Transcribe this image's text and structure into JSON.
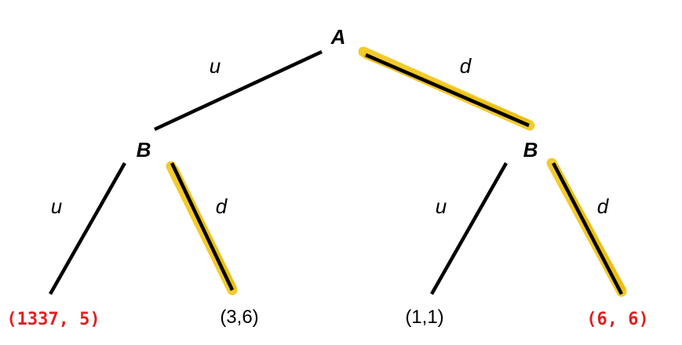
{
  "tree": {
    "root": {
      "label": "A"
    },
    "left_node": {
      "label": "B"
    },
    "right_node": {
      "label": "B"
    },
    "edges": {
      "A_left": {
        "label": "u"
      },
      "A_right": {
        "label": "d",
        "highlighted": true
      },
      "B1_left": {
        "label": "u"
      },
      "B1_right": {
        "label": "d",
        "highlighted": true
      },
      "B2_left": {
        "label": "u"
      },
      "B2_right": {
        "label": "d",
        "highlighted": true
      }
    },
    "payoffs": [
      {
        "text": "(1337, 5)",
        "emphasized": true
      },
      {
        "text": "(3,6)",
        "emphasized": false
      },
      {
        "text": "(1,1)",
        "emphasized": false
      },
      {
        "text": "(6, 6)",
        "emphasized": true
      }
    ]
  },
  "colors": {
    "highlight": "#f2c614",
    "emphasis": "#e02020",
    "edge": "#000000"
  }
}
